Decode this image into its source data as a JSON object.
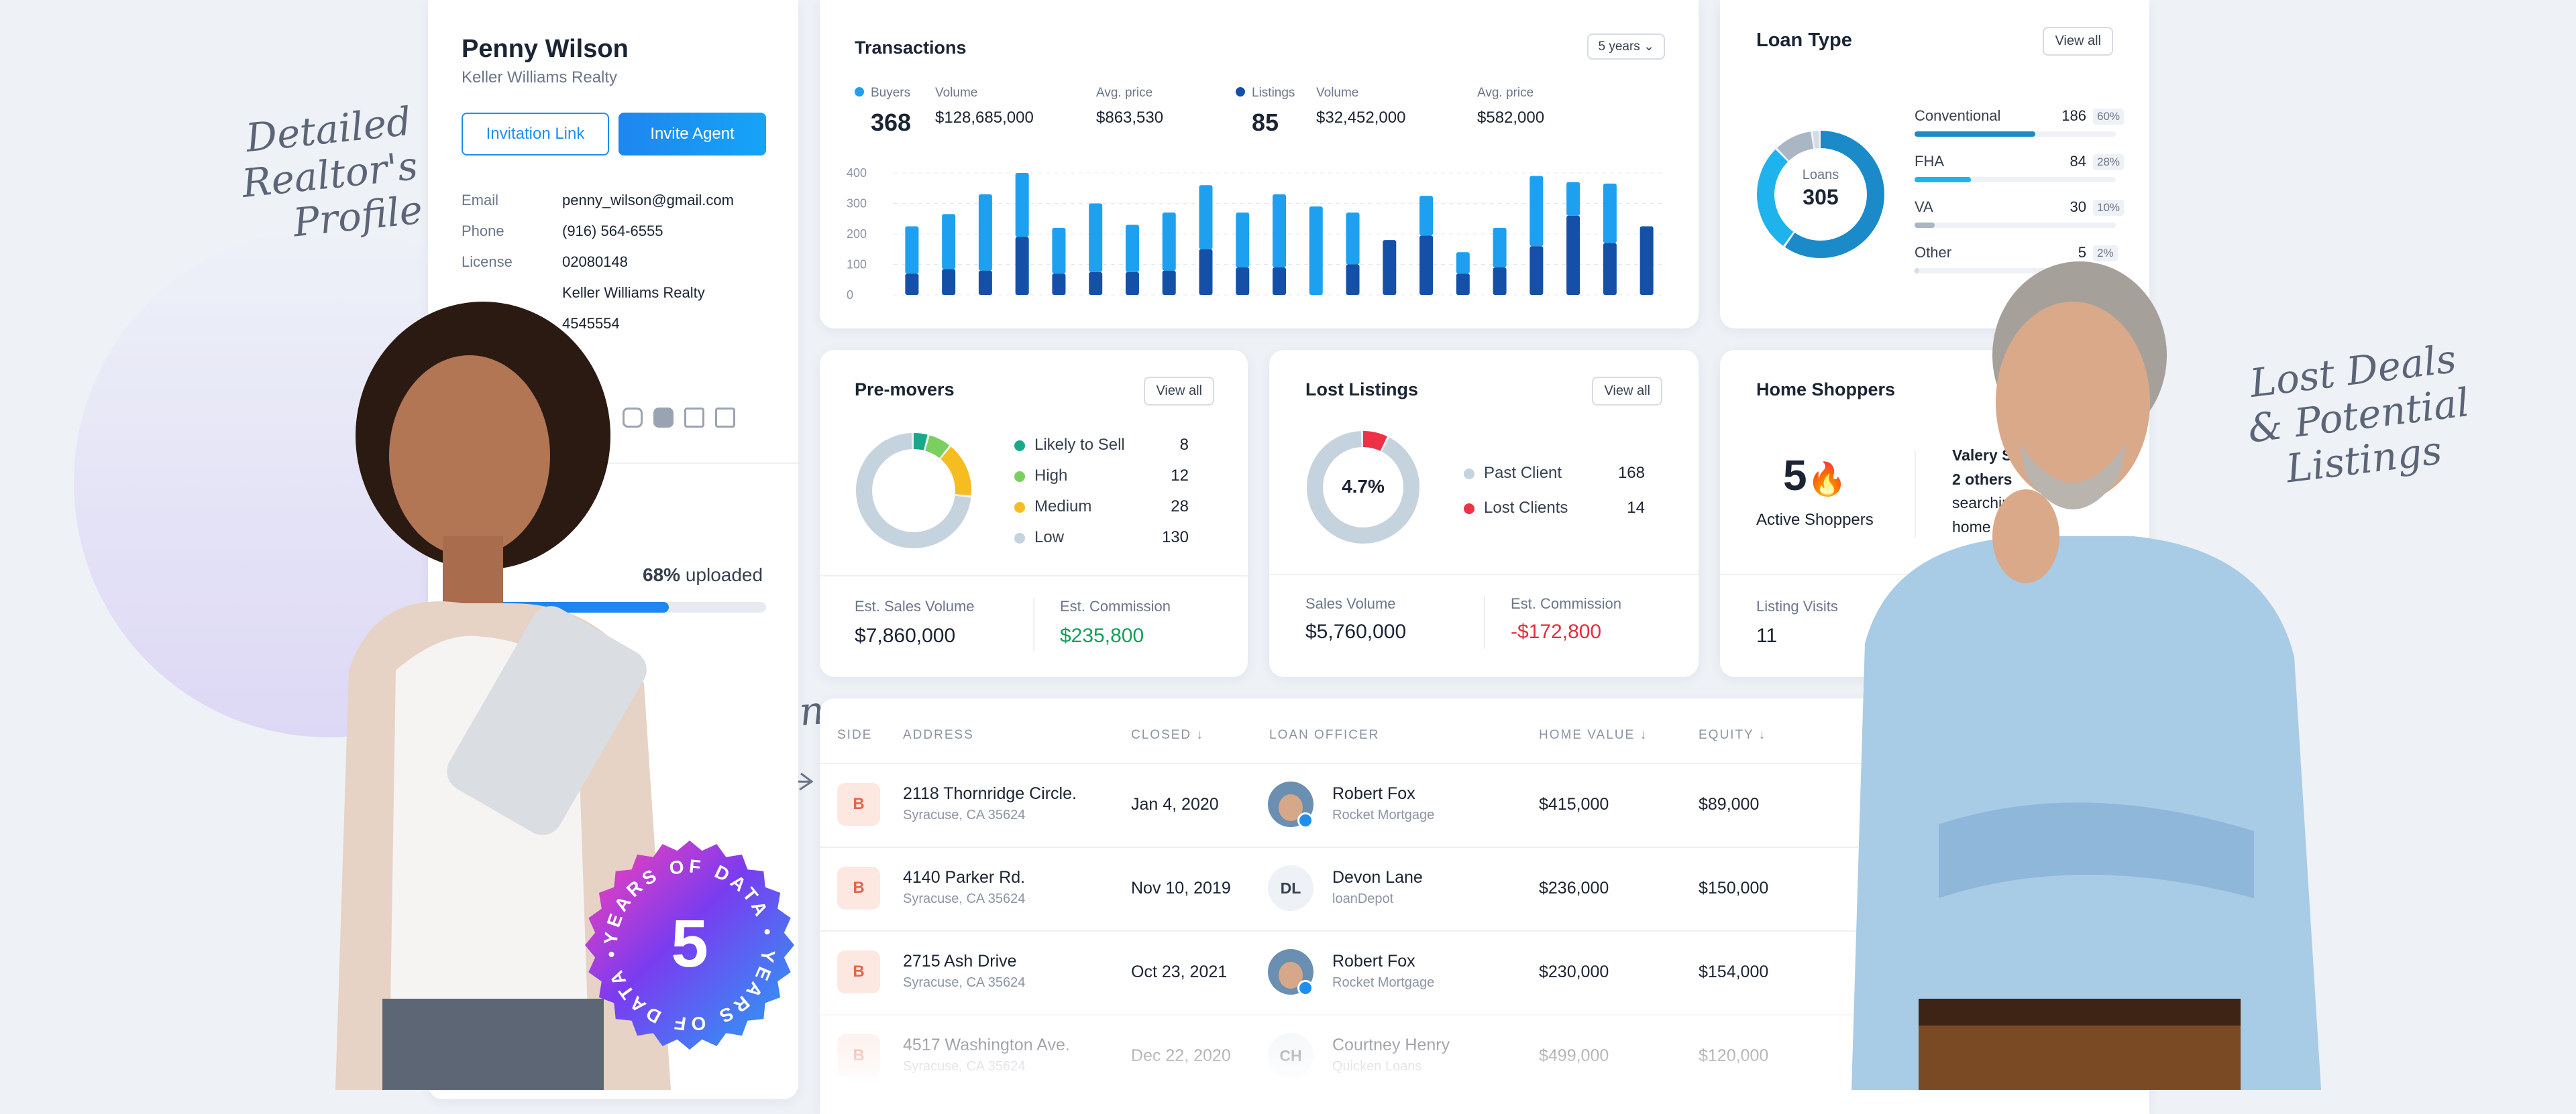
{
  "annotations": {
    "profile": [
      "Detailed",
      "Realtor's",
      "Profile"
    ],
    "transactions": "Transactions",
    "lost": [
      "Lost Deals",
      "& Potential",
      "Listings"
    ]
  },
  "badge": {
    "number": "5",
    "ring_text": "YEARS OF DATA • YEARS OF DATA •"
  },
  "profile": {
    "name": "Penny Wilson",
    "company": "Keller Williams Realty",
    "invite_link_label": "Invitation Link",
    "invite_agent_label": "Invite Agent",
    "fields": [
      {
        "label": "Email",
        "value": "penny_wilson@gmail.com"
      },
      {
        "label": "Phone",
        "value": "(916) 564-6555"
      },
      {
        "label": "License",
        "value": "02080148"
      },
      {
        "label": "",
        "value": "Keller Williams Realty"
      },
      {
        "label": "",
        "value": "4545554"
      }
    ],
    "social_icons": [
      "instagram-icon",
      "youtube-icon",
      "zillow-icon",
      "realtor-icon"
    ],
    "upload": {
      "percent_label": "68%",
      "suffix": "uploaded",
      "fraction": 0.68
    }
  },
  "transactions": {
    "title": "Transactions",
    "period": "5 years",
    "stats": [
      {
        "label": "Buyers",
        "value": "368",
        "dot": "#1ea0f0"
      },
      {
        "label": "Volume",
        "value": "$128,685,000"
      },
      {
        "label": "Avg. price",
        "value": "$863,530"
      },
      {
        "label": "Listings",
        "value": "85",
        "dot": "#1550a8"
      },
      {
        "label": "Volume",
        "value": "$32,452,000"
      },
      {
        "label": "Avg. price",
        "value": "$582,000"
      }
    ]
  },
  "chart_data": {
    "type": "bar",
    "stacked": true,
    "ylim": [
      0,
      400
    ],
    "yticks": [
      "0",
      "100",
      "200",
      "300",
      "400"
    ],
    "series": [
      {
        "values": [
          70,
          85,
          80,
          190,
          70,
          75,
          75,
          80,
          150,
          90,
          90,
          0,
          100,
          180,
          195,
          70,
          90,
          160,
          260,
          170,
          225
        ],
        "color": "#1550a8"
      },
      {
        "values": [
          155,
          180,
          250,
          210,
          150,
          225,
          155,
          190,
          210,
          180,
          240,
          290,
          170,
          0,
          130,
          70,
          130,
          230,
          110,
          195,
          0
        ],
        "color": "#1ea0f0"
      }
    ],
    "colors": [
      "#1550a8",
      "#1ea0f0"
    ]
  },
  "loan_type": {
    "title": "Loan Type",
    "view_all": "View all",
    "center_label": "Loans",
    "center_value": "305",
    "items": [
      {
        "name": "Conventional",
        "count": "186",
        "pct": "60%",
        "fraction": 0.6
      },
      {
        "name": "FHA",
        "count": "84",
        "pct": "28%",
        "fraction": 0.28
      },
      {
        "name": "VA",
        "count": "30",
        "pct": "10%",
        "fraction": 0.1
      },
      {
        "name": "Other",
        "count": "5",
        "pct": "2%",
        "fraction": 0.02
      }
    ]
  },
  "premovers": {
    "title": "Pre-movers",
    "view_all": "View all",
    "items": [
      {
        "name": "Likely to Sell",
        "value": "8",
        "color": "#19a98a"
      },
      {
        "name": "High",
        "value": "12",
        "color": "#7bcf5f"
      },
      {
        "name": "Medium",
        "value": "28",
        "color": "#f5bd1f"
      },
      {
        "name": "Low",
        "value": "130",
        "color": "#c5d3df"
      }
    ],
    "sales_label": "Est. Sales Volume",
    "sales_value": "$7,860,000",
    "commission_label": "Est. Commission",
    "commission_value": "$235,800"
  },
  "lost_listings": {
    "title": "Lost Listings",
    "view_all": "View all",
    "center_value": "4.7%",
    "items": [
      {
        "name": "Past Client",
        "value": "168",
        "color": "#c5d3df"
      },
      {
        "name": "Lost Clients",
        "value": "14",
        "color": "#ee3147"
      }
    ],
    "sales_label": "Sales Volume",
    "sales_value": "$5,760,000",
    "commission_label": "Est. Commission",
    "commission_value": "-$172,800"
  },
  "home_shoppers": {
    "title": "Home Shoppers",
    "count": "5",
    "count_label": "Active Shoppers",
    "lines": [
      "Valery Sc",
      "2 others",
      "searching",
      "home n"
    ],
    "visits_label": "Listing Visits",
    "visits_value": "11"
  },
  "table": {
    "headers": [
      "SIDE",
      "ADDRESS",
      "CLOSED ↓",
      "LOAN OFFICER",
      "HOME VALUE ↓",
      "EQUITY ↓"
    ],
    "rows": [
      {
        "side": "B",
        "address": "2118 Thornridge Circle.",
        "city": "Syracuse, CA 35624",
        "closed": "Jan 4, 2020",
        "officer": "Robert Fox",
        "lender": "Rocket Mortgage",
        "initials": "",
        "home_value": "$415,000",
        "equity": "$89,000"
      },
      {
        "side": "B",
        "address": "4140 Parker Rd.",
        "city": "Syracuse, CA 35624",
        "closed": "Nov 10, 2019",
        "officer": "Devon Lane",
        "lender": "loanDepot",
        "initials": "DL",
        "home_value": "$236,000",
        "equity": "$150,000"
      },
      {
        "side": "B",
        "address": "2715 Ash Drive",
        "city": "Syracuse, CA 35624",
        "closed": "Oct 23, 2021",
        "officer": "Robert Fox",
        "lender": "Rocket Mortgage",
        "initials": "",
        "home_value": "$230,000",
        "equity": "$154,000"
      },
      {
        "side": "B",
        "address": "4517 Washington Ave.",
        "city": "Syracuse, CA 35624",
        "closed": "Dec 22, 2020",
        "officer": "Courtney Henry",
        "lender": "Quicken Loans",
        "initials": "CH",
        "home_value": "$499,000",
        "equity": "$120,000"
      }
    ]
  }
}
